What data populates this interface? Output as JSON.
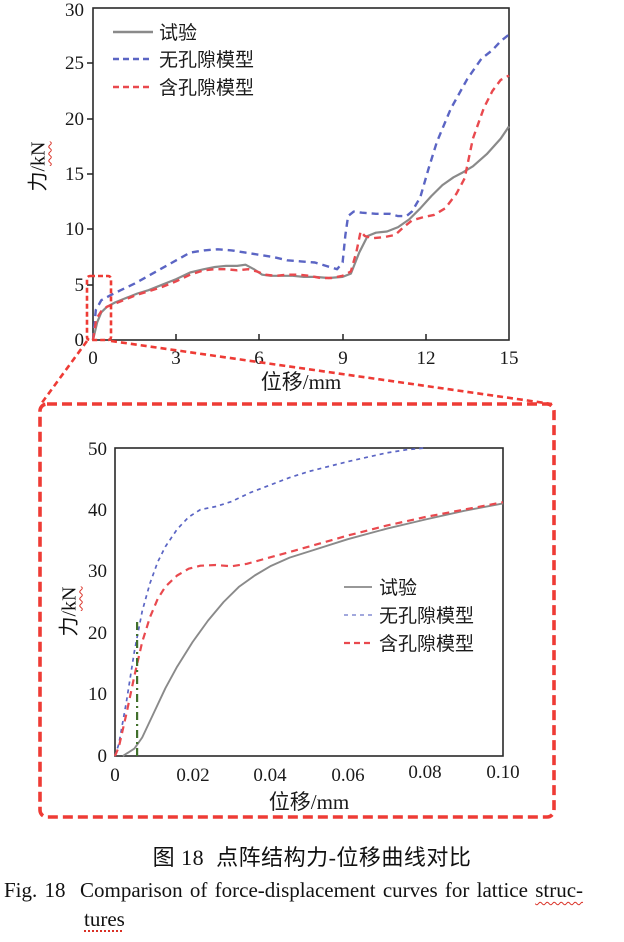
{
  "figure": {
    "caption_zh": "图 18  点阵结构力-位移曲线对比",
    "caption_en_prefix": "Fig. 18  Comparison of force-displacement curves for lattice ",
    "caption_en_wavy": "struc-",
    "caption_en_line2": "tures"
  },
  "colors": {
    "test_gray": "#8a8a8a",
    "no_pore_blue": "#5b65c4",
    "with_pore_red": "#e9494e",
    "callout_red": "#ee3b35",
    "green_marker": "#41702c",
    "axis": "#222222"
  },
  "chart_data": [
    {
      "type": "line",
      "title": "",
      "xlabel": "位移/mm",
      "ylabel_prefix": "力/",
      "ylabel_unit": "kN",
      "xlim": [
        0,
        15
      ],
      "ylim": [
        0,
        30
      ],
      "xtick_labels": [
        "0",
        "3",
        "6",
        "9",
        "12",
        "15"
      ],
      "ytick_labels": [
        "0",
        "5",
        "10",
        "15",
        "20",
        "25",
        "30"
      ],
      "legend": [
        "试验",
        "无孔隙模型",
        "含孔隙模型"
      ],
      "legend_position": "top-left",
      "grid": false,
      "zoom_region": {
        "x": [
          0,
          0.6
        ],
        "y": [
          0,
          5.6
        ]
      },
      "series": [
        {
          "name": "试验",
          "color": "#8a8a8a",
          "dash": "solid",
          "w": 2.2,
          "points": [
            [
              0,
              0
            ],
            [
              0.15,
              1.6
            ],
            [
              0.3,
              2.5
            ],
            [
              0.5,
              3.0
            ],
            [
              0.8,
              3.4
            ],
            [
              1.2,
              3.8
            ],
            [
              1.6,
              4.2
            ],
            [
              2,
              4.5
            ],
            [
              2.5,
              5.0
            ],
            [
              3,
              5.5
            ],
            [
              3.5,
              6.1
            ],
            [
              4,
              6.4
            ],
            [
              4.4,
              6.6
            ],
            [
              4.8,
              6.7
            ],
            [
              5.2,
              6.7
            ],
            [
              5.5,
              6.8
            ],
            [
              5.8,
              6.4
            ],
            [
              6.1,
              5.9
            ],
            [
              6.4,
              5.8
            ],
            [
              6.8,
              5.8
            ],
            [
              7.2,
              5.8
            ],
            [
              7.6,
              5.7
            ],
            [
              8,
              5.7
            ],
            [
              8.5,
              5.6
            ],
            [
              9,
              5.7
            ],
            [
              9.3,
              6.0
            ],
            [
              9.6,
              7.9
            ],
            [
              9.9,
              9.4
            ],
            [
              10.2,
              9.7
            ],
            [
              10.6,
              9.8
            ],
            [
              11,
              10.2
            ],
            [
              11.4,
              10.9
            ],
            [
              11.8,
              11.9
            ],
            [
              12.2,
              13.0
            ],
            [
              12.6,
              14.0
            ],
            [
              13,
              14.7
            ],
            [
              13.3,
              15.1
            ],
            [
              13.7,
              15.7
            ],
            [
              14.2,
              16.8
            ],
            [
              14.7,
              18.2
            ],
            [
              15,
              19.3
            ]
          ]
        },
        {
          "name": "无孔隙模型",
          "color": "#5b65c4",
          "dash": "7 5",
          "w": 2.4,
          "points": [
            [
              0,
              0
            ],
            [
              0.1,
              2.7
            ],
            [
              0.3,
              3.6
            ],
            [
              0.6,
              4.0
            ],
            [
              1,
              4.5
            ],
            [
              1.5,
              5.1
            ],
            [
              2,
              5.8
            ],
            [
              2.5,
              6.5
            ],
            [
              3,
              7.2
            ],
            [
              3.5,
              7.9
            ],
            [
              4,
              8.1
            ],
            [
              4.5,
              8.2
            ],
            [
              5,
              8.1
            ],
            [
              5.5,
              7.9
            ],
            [
              6,
              7.7
            ],
            [
              6.5,
              7.5
            ],
            [
              7,
              7.2
            ],
            [
              7.5,
              7.1
            ],
            [
              8,
              7.0
            ],
            [
              8.4,
              6.7
            ],
            [
              8.8,
              6.4
            ],
            [
              9.0,
              7.0
            ],
            [
              9.1,
              9.5
            ],
            [
              9.2,
              11.2
            ],
            [
              9.4,
              11.6
            ],
            [
              9.7,
              11.5
            ],
            [
              10.2,
              11.4
            ],
            [
              10.7,
              11.4
            ],
            [
              11.0,
              11.2
            ],
            [
              11.3,
              11.2
            ],
            [
              11.5,
              11.6
            ],
            [
              11.8,
              12.9
            ],
            [
              12.1,
              15.5
            ],
            [
              12.4,
              17.9
            ],
            [
              12.9,
              20.9
            ],
            [
              13.5,
              23.6
            ],
            [
              14.0,
              25.4
            ],
            [
              14.4,
              26.2
            ],
            [
              14.7,
              27.0
            ],
            [
              15,
              27.6
            ]
          ]
        },
        {
          "name": "含孔隙模型",
          "color": "#e9494e",
          "dash": "7 5",
          "w": 2.4,
          "points": [
            [
              0,
              0
            ],
            [
              0.12,
              1.9
            ],
            [
              0.3,
              2.6
            ],
            [
              0.5,
              3.0
            ],
            [
              0.8,
              3.3
            ],
            [
              1.2,
              3.7
            ],
            [
              1.6,
              4.1
            ],
            [
              2,
              4.4
            ],
            [
              2.5,
              4.8
            ],
            [
              3,
              5.3
            ],
            [
              3.5,
              5.9
            ],
            [
              4,
              6.3
            ],
            [
              4.4,
              6.4
            ],
            [
              4.8,
              6.4
            ],
            [
              5.2,
              6.3
            ],
            [
              5.6,
              6.4
            ],
            [
              5.9,
              6.2
            ],
            [
              6.2,
              5.9
            ],
            [
              6.6,
              5.8
            ],
            [
              7,
              5.9
            ],
            [
              7.4,
              5.9
            ],
            [
              7.8,
              5.8
            ],
            [
              8.2,
              5.6
            ],
            [
              8.6,
              5.6
            ],
            [
              9,
              5.8
            ],
            [
              9.3,
              6.2
            ],
            [
              9.5,
              8.0
            ],
            [
              9.65,
              9.8
            ],
            [
              9.8,
              9.4
            ],
            [
              10.1,
              9.2
            ],
            [
              10.5,
              9.3
            ],
            [
              10.9,
              9.5
            ],
            [
              11.2,
              10.2
            ],
            [
              11.5,
              10.8
            ],
            [
              11.9,
              11.1
            ],
            [
              12.3,
              11.3
            ],
            [
              12.7,
              11.9
            ],
            [
              13.1,
              13.2
            ],
            [
              13.4,
              14.6
            ],
            [
              13.7,
              18.2
            ],
            [
              14.1,
              21.0
            ],
            [
              14.4,
              22.5
            ],
            [
              14.7,
              23.5
            ],
            [
              15,
              23.9
            ]
          ]
        }
      ]
    },
    {
      "type": "line",
      "title": "",
      "xlabel": "位移/mm",
      "ylabel_prefix": "力/",
      "ylabel_unit": "kN",
      "xlim": [
        0,
        0.1
      ],
      "ylim": [
        0,
        50
      ],
      "xtick_labels": [
        "0",
        "0.02",
        "0.04",
        "0.06",
        "0.08",
        "0.10"
      ],
      "ytick_labels": [
        "0",
        "10",
        "20",
        "30",
        "40",
        "50"
      ],
      "legend": [
        "试验",
        "无孔隙模型",
        "含孔隙模型"
      ],
      "legend_position": "middle-right",
      "grid": false,
      "series": [
        {
          "name": "试验",
          "color": "#8a8a8a",
          "dash": "solid",
          "w": 1.9,
          "points": [
            [
              0.002,
              0
            ],
            [
              0.005,
              1.2
            ],
            [
              0.007,
              3
            ],
            [
              0.01,
              7
            ],
            [
              0.013,
              11
            ],
            [
              0.016,
              14.5
            ],
            [
              0.02,
              18.5
            ],
            [
              0.024,
              22
            ],
            [
              0.028,
              25
            ],
            [
              0.032,
              27.5
            ],
            [
              0.036,
              29.3
            ],
            [
              0.04,
              30.8
            ],
            [
              0.045,
              32.2
            ],
            [
              0.05,
              33.2
            ],
            [
              0.06,
              35.2
            ],
            [
              0.07,
              36.9
            ],
            [
              0.08,
              38.4
            ],
            [
              0.09,
              39.8
            ],
            [
              0.1,
              41
            ]
          ]
        },
        {
          "name": "无孔隙模型",
          "color": "#5b65c4",
          "dash": "4 4",
          "w": 1.7,
          "points": [
            [
              0,
              0
            ],
            [
              0.001,
              2
            ],
            [
              0.003,
              9
            ],
            [
              0.005,
              17
            ],
            [
              0.007,
              23.5
            ],
            [
              0.009,
              28
            ],
            [
              0.011,
              31.5
            ],
            [
              0.013,
              34
            ],
            [
              0.016,
              36.8
            ],
            [
              0.019,
              38.8
            ],
            [
              0.022,
              40
            ],
            [
              0.026,
              40.5
            ],
            [
              0.03,
              41.3
            ],
            [
              0.035,
              42.8
            ],
            [
              0.04,
              44
            ],
            [
              0.045,
              45.2
            ],
            [
              0.05,
              46.2
            ],
            [
              0.055,
              47
            ],
            [
              0.06,
              47.8
            ],
            [
              0.065,
              48.5
            ],
            [
              0.07,
              49.2
            ],
            [
              0.075,
              49.7
            ],
            [
              0.08,
              50.3
            ]
          ]
        },
        {
          "name": "含孔隙模型",
          "color": "#e9494e",
          "dash": "7 5",
          "w": 2.2,
          "points": [
            [
              0,
              0
            ],
            [
              0.001,
              1.5
            ],
            [
              0.003,
              7
            ],
            [
              0.005,
              13
            ],
            [
              0.007,
              18.5
            ],
            [
              0.009,
              22.5
            ],
            [
              0.011,
              25.5
            ],
            [
              0.013,
              27.5
            ],
            [
              0.016,
              29.3
            ],
            [
              0.019,
              30.4
            ],
            [
              0.022,
              30.9
            ],
            [
              0.026,
              31
            ],
            [
              0.03,
              30.8
            ],
            [
              0.034,
              31.2
            ],
            [
              0.038,
              31.9
            ],
            [
              0.042,
              32.6
            ],
            [
              0.046,
              33.3
            ],
            [
              0.05,
              34
            ],
            [
              0.06,
              35.8
            ],
            [
              0.07,
              37.4
            ],
            [
              0.08,
              38.8
            ],
            [
              0.09,
              40
            ],
            [
              0.1,
              41.2
            ]
          ]
        },
        {
          "name": "green-dashdot-marker",
          "color": "#41702c",
          "dash": "8 4 2 4",
          "w": 2.2,
          "points": [
            [
              0.0057,
              0
            ],
            [
              0.0057,
              22
            ]
          ]
        }
      ]
    }
  ]
}
